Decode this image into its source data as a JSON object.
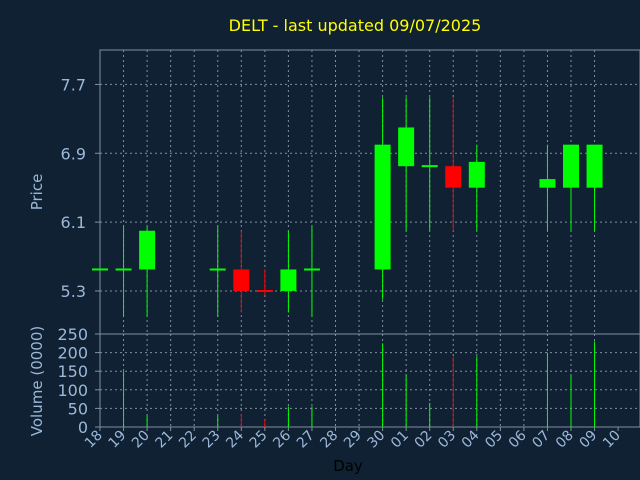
{
  "chart_data": {
    "type": "candlestick",
    "title": "DELT - last updated 09/07/2025",
    "xlabel": "Day",
    "price_ylabel": "Price",
    "volume_ylabel": "Volume (0000)",
    "grid": true,
    "price_ylim": [
      4.8,
      8.1
    ],
    "price_ticks": [
      "5.3",
      "6.1",
      "6.9",
      "7.7"
    ],
    "volume_ylim": [
      0,
      250
    ],
    "volume_ticks": [
      "0",
      "50",
      "100",
      "150",
      "200",
      "250"
    ],
    "x_labels": [
      "18",
      "19",
      "20",
      "21",
      "22",
      "23",
      "24",
      "25",
      "26",
      "27",
      "28",
      "29",
      "30",
      "01",
      "02",
      "03",
      "04",
      "05",
      "06",
      "07",
      "08",
      "09",
      "10"
    ],
    "up_color": "#00ff00",
    "down_color": "#ff0000",
    "candles": [
      {
        "day": "18",
        "open": 5.55,
        "high": 5.55,
        "low": 5.55,
        "close": 5.55,
        "volume": 0
      },
      {
        "day": "19",
        "open": 5.55,
        "high": 6.05,
        "low": 5.0,
        "close": 5.55,
        "volume": 150
      },
      {
        "day": "20",
        "open": 5.55,
        "high": 6.05,
        "low": 5.0,
        "close": 6.0,
        "volume": 30
      },
      {
        "day": "23",
        "open": 5.55,
        "high": 6.05,
        "low": 5.0,
        "close": 5.55,
        "volume": 30
      },
      {
        "day": "24",
        "open": 5.55,
        "high": 6.0,
        "low": 5.05,
        "close": 5.3,
        "volume": 35
      },
      {
        "day": "25",
        "open": 5.3,
        "high": 5.55,
        "low": 5.25,
        "close": 5.28,
        "volume": 20
      },
      {
        "day": "26",
        "open": 5.3,
        "high": 6.0,
        "low": 5.05,
        "close": 5.55,
        "volume": 55
      },
      {
        "day": "27",
        "open": 5.55,
        "high": 6.05,
        "low": 5.0,
        "close": 5.55,
        "volume": 55
      },
      {
        "day": "30",
        "open": 5.55,
        "high": 7.55,
        "low": 5.2,
        "close": 7.0,
        "volume": 225
      },
      {
        "day": "01",
        "open": 6.75,
        "high": 7.55,
        "low": 6.0,
        "close": 7.2,
        "volume": 140
      },
      {
        "day": "02",
        "open": 6.75,
        "high": 7.55,
        "low": 6.0,
        "close": 6.75,
        "volume": 65
      },
      {
        "day": "03",
        "open": 6.75,
        "high": 7.55,
        "low": 6.0,
        "close": 6.5,
        "volume": 190
      },
      {
        "day": "04",
        "open": 6.5,
        "high": 7.0,
        "low": 6.0,
        "close": 6.8,
        "volume": 190
      },
      {
        "day": "07",
        "open": 6.5,
        "high": 7.0,
        "low": 6.0,
        "close": 6.6,
        "volume": 200
      },
      {
        "day": "08",
        "open": 6.5,
        "high": 7.0,
        "low": 6.0,
        "close": 7.0,
        "volume": 140
      },
      {
        "day": "09",
        "open": 6.5,
        "high": 7.0,
        "low": 6.0,
        "close": 7.0,
        "volume": 230
      }
    ]
  }
}
